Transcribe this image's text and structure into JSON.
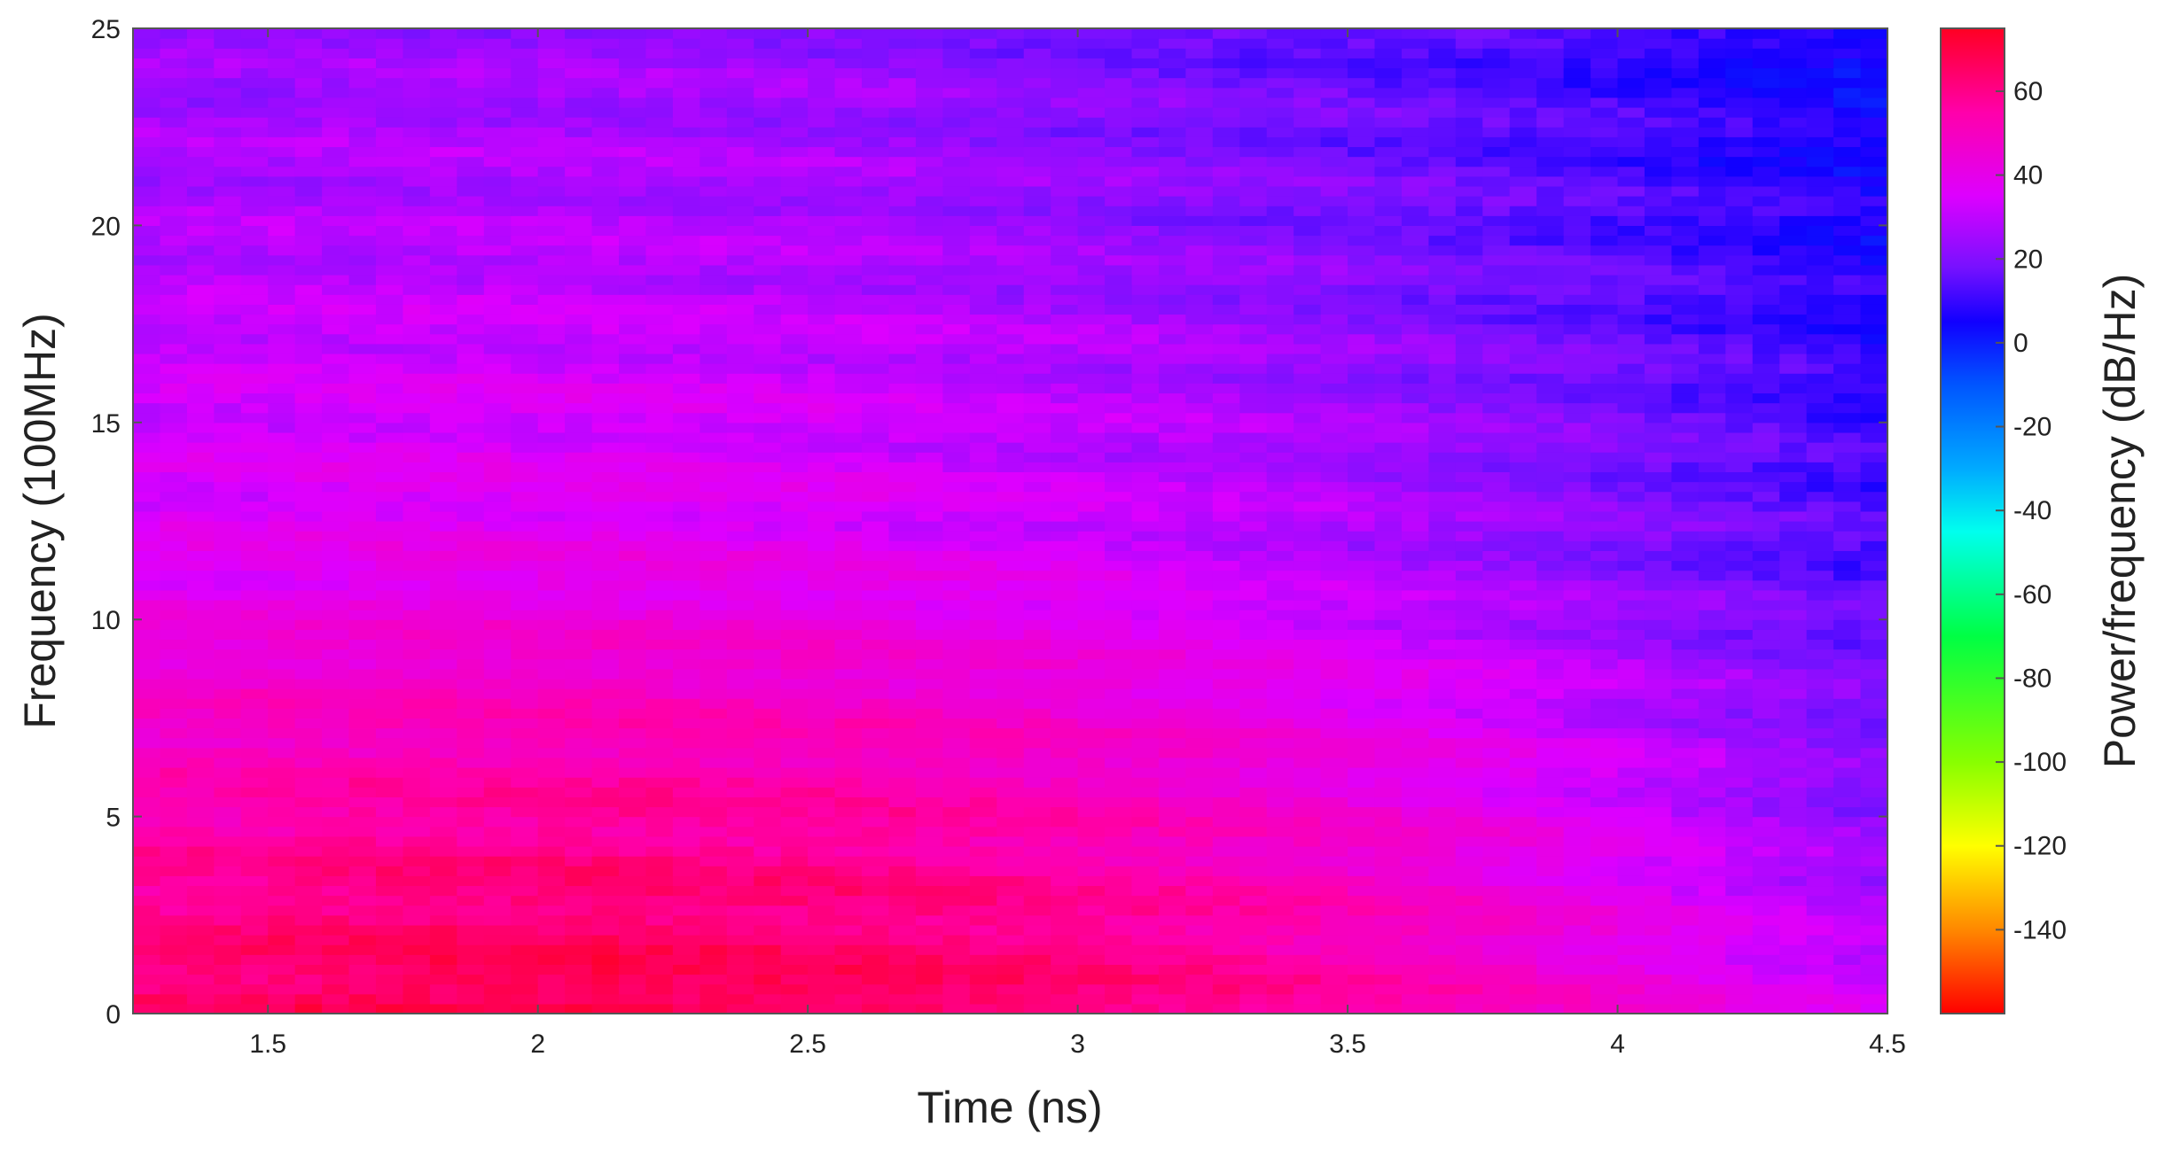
{
  "chart_data": {
    "type": "heatmap",
    "xlabel": "Time (ns)",
    "ylabel": "Frequency (100MHz)",
    "colorbar_label": "Power/frequency (dB/Hz)",
    "xlim": [
      1.25,
      4.5
    ],
    "ylim": [
      0,
      25
    ],
    "x_ticks": [
      1.5,
      2,
      2.5,
      3,
      3.5,
      4,
      4.5
    ],
    "x_tick_labels": [
      "1.5",
      "2",
      "2.5",
      "3",
      "3.5",
      "4",
      "4.5"
    ],
    "y_ticks": [
      0,
      5,
      10,
      15,
      20,
      25
    ],
    "y_tick_labels": [
      "0",
      "5",
      "10",
      "15",
      "20",
      "25"
    ],
    "color_range": [
      -160,
      75
    ],
    "colorbar_ticks": [
      60,
      40,
      20,
      0,
      -20,
      -40,
      -60,
      -80,
      -100,
      -120,
      -140
    ],
    "colorbar_tick_labels": [
      "60",
      "40",
      "20",
      "0",
      "-20",
      "-40",
      "-60",
      "-80",
      "-100",
      "-120",
      "-140"
    ],
    "colorbar_stops": [
      {
        "value": 75,
        "color": "#ff0022"
      },
      {
        "value": 55,
        "color": "#ff00aa"
      },
      {
        "value": 35,
        "color": "#dd00ff"
      },
      {
        "value": 18,
        "color": "#7711ff"
      },
      {
        "value": 5,
        "color": "#1100ff"
      },
      {
        "value": -10,
        "color": "#0055ff"
      },
      {
        "value": -30,
        "color": "#00aaff"
      },
      {
        "value": -45,
        "color": "#00ffee"
      },
      {
        "value": -70,
        "color": "#00ff44"
      },
      {
        "value": -100,
        "color": "#88ff00"
      },
      {
        "value": -120,
        "color": "#ffff00"
      },
      {
        "value": -140,
        "color": "#ff8800"
      },
      {
        "value": -160,
        "color": "#ff0000"
      }
    ],
    "grid": {
      "time_start": 1.25,
      "time_step": 0.05,
      "freq_step": 0.25
    },
    "cells": [
      [
        65,
        67,
        69,
        70,
        70,
        69,
        67,
        65,
        62,
        59,
        55,
        50,
        45,
        39,
        34
      ],
      [
        58,
        60,
        62,
        63,
        63,
        62,
        61,
        59,
        56,
        53,
        49,
        44,
        38,
        32,
        27
      ],
      [
        52,
        53,
        55,
        56,
        56,
        55,
        54,
        52,
        49,
        46,
        42,
        38,
        32,
        26,
        20
      ],
      [
        46,
        47,
        48,
        49,
        49,
        48,
        47,
        45,
        43,
        40,
        37,
        33,
        28,
        23,
        18
      ],
      [
        37,
        38,
        39,
        40,
        40,
        39,
        38,
        36,
        34,
        31,
        28,
        25,
        21,
        17,
        13
      ],
      [
        34,
        35,
        36,
        36,
        36,
        35,
        34,
        32,
        30,
        28,
        25,
        22,
        19,
        15,
        11
      ],
      [
        32,
        32,
        33,
        33,
        33,
        32,
        31,
        29,
        27,
        25,
        22,
        19,
        16,
        12,
        8
      ],
      [
        28,
        29,
        29,
        29,
        29,
        28,
        27,
        25,
        23,
        21,
        19,
        16,
        13,
        10,
        6
      ],
      [
        26,
        26,
        27,
        27,
        27,
        26,
        25,
        23,
        21,
        19,
        17,
        14,
        11,
        8,
        4
      ],
      [
        23,
        23,
        24,
        24,
        24,
        23,
        22,
        20,
        18,
        16,
        14,
        12,
        9,
        6,
        2
      ]
    ]
  }
}
